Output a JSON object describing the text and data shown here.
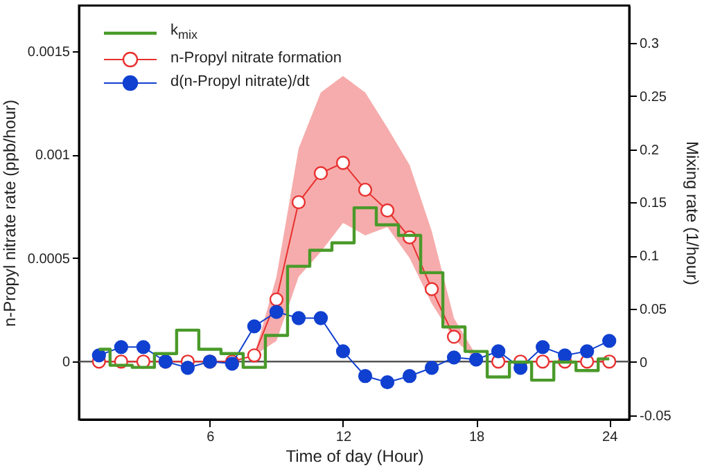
{
  "chart_data": {
    "type": "line",
    "xlabel": "Time of day (Hour)",
    "ylabel": "n-Propyl nitrate rate (ppb/hour)",
    "y2label": "Mixing rate (1/hour)",
    "x": [
      1,
      2,
      3,
      4,
      5,
      6,
      7,
      8,
      9,
      10,
      11,
      12,
      13,
      14,
      15,
      16,
      17,
      18,
      19,
      20,
      21,
      22,
      23,
      24
    ],
    "xlim": [
      0.1,
      24.9
    ],
    "xticks": [
      6,
      12,
      18,
      24
    ],
    "ylim": [
      -0.00028,
      0.00172
    ],
    "yticks": [
      0,
      0.0005,
      0.001,
      0.0015
    ],
    "y2lim": [
      -0.054,
      0.335
    ],
    "y2ticks": [
      -0.05,
      0,
      0.05,
      0.1,
      0.15,
      0.2,
      0.25,
      0.3
    ],
    "series": [
      {
        "name": "k$_{mix}$",
        "type": "step",
        "axis": "y2",
        "color": "#4a9a2a",
        "marker": "none",
        "values": [
          0.012,
          -0.003,
          -0.005,
          0.008,
          0.03,
          0.012,
          0.008,
          -0.005,
          0.025,
          0.09,
          0.105,
          0.112,
          0.145,
          0.129,
          0.119,
          0.084,
          0.033,
          0.01,
          -0.014,
          0,
          -0.017,
          0,
          -0.008,
          0.003
        ]
      },
      {
        "name": "n-Propyl nitrate formation",
        "type": "line",
        "color": "#e8302f",
        "marker": "circle",
        "values": [
          0,
          0,
          0,
          0,
          0,
          0,
          0,
          3e-05,
          0.0003,
          0.00077,
          0.00091,
          0.00096,
          0.00083,
          0.00073,
          0.0006,
          0.00035,
          0.00012,
          null,
          0,
          0,
          0,
          0,
          0,
          0
        ],
        "lower": [
          null,
          null,
          null,
          null,
          null,
          null,
          null,
          3e-05,
          0.0001,
          0.00041,
          0.00053,
          0.00067,
          0.00061,
          0.00065,
          0.0005,
          0.00028,
          0.00011,
          1e-05,
          null,
          null,
          null,
          null,
          null,
          null
        ],
        "upper": [
          null,
          null,
          null,
          null,
          null,
          null,
          null,
          3e-05,
          0.00041,
          0.00103,
          0.0013,
          0.00138,
          0.0013,
          0.00113,
          0.00095,
          0.00063,
          0.00021,
          3e-05,
          null,
          null,
          null,
          null,
          null,
          null
        ]
      },
      {
        "name": "d(n-Propyl nitrate)/dt",
        "type": "line",
        "color": "#1040d0",
        "marker": "circle",
        "values": [
          3e-05,
          7e-05,
          7e-05,
          0,
          -3e-05,
          0,
          -1e-05,
          0.00017,
          0.00024,
          0.00021,
          0.00021,
          5e-05,
          -7e-05,
          -0.0001,
          -7e-05,
          -3e-05,
          2e-05,
          1e-05,
          5e-05,
          -3e-05,
          7e-05,
          3e-05,
          5e-05,
          0.0001
        ]
      }
    ],
    "ref_lines": [
      {
        "axis": "y",
        "value": 0,
        "color": "#555555"
      }
    ],
    "legend": "top left",
    "grid": false
  }
}
